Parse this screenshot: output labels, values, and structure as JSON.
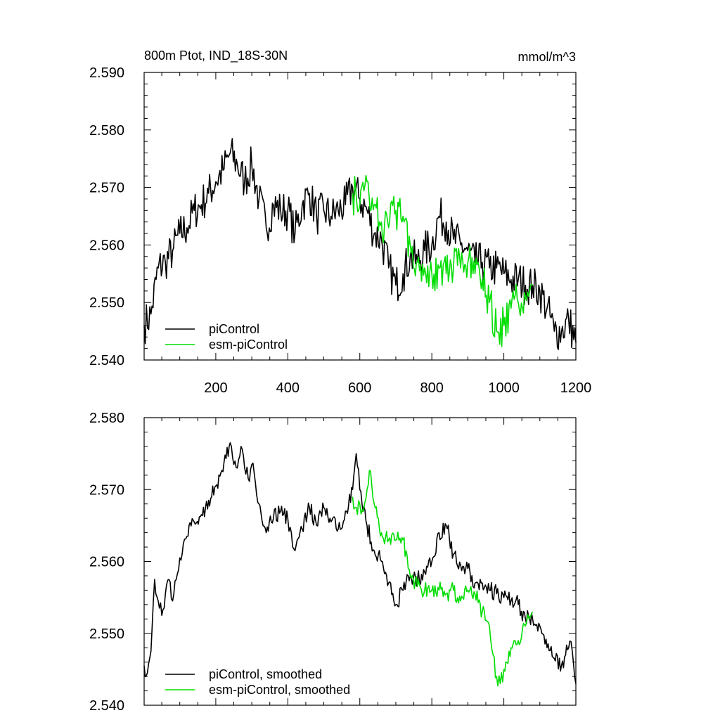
{
  "title": "800m Ptot, IND_18S-30N",
  "units": "mmol/m^3",
  "chart_data": [
    {
      "type": "line",
      "title": "800m Ptot, IND_18S-30N",
      "units": "mmol/m^3",
      "xlim": [
        1,
        1200
      ],
      "ylim": [
        2.54,
        2.59
      ],
      "xticks": [
        200,
        400,
        600,
        800,
        1000,
        1200
      ],
      "xtick_labels": [
        "200",
        "400",
        "600",
        "800",
        "1000",
        "1200"
      ],
      "yticks": [
        2.54,
        2.55,
        2.56,
        2.57,
        2.58,
        2.59
      ],
      "ytick_labels": [
        "2.540",
        "2.550",
        "2.560",
        "2.570",
        "2.580",
        "2.590"
      ],
      "legend_position": "bottom-left",
      "grid": false,
      "series": [
        {
          "name": "piControl",
          "color": "#000000",
          "x": [
            1,
            20,
            40,
            60,
            80,
            100,
            120,
            140,
            160,
            180,
            200,
            220,
            240,
            260,
            280,
            300,
            320,
            340,
            360,
            380,
            400,
            420,
            440,
            460,
            480,
            500,
            520,
            540,
            560,
            580,
            600,
            620,
            640,
            660,
            680,
            700,
            720,
            740,
            760,
            780,
            800,
            820,
            840,
            860,
            880,
            900,
            920,
            940,
            960,
            980,
            1000,
            1020,
            1040,
            1060,
            1080,
            1100,
            1120,
            1140,
            1160,
            1180,
            1200
          ],
          "y": [
            2.546,
            2.548,
            2.556,
            2.557,
            2.559,
            2.562,
            2.563,
            2.566,
            2.567,
            2.569,
            2.571,
            2.573,
            2.576,
            2.574,
            2.571,
            2.574,
            2.568,
            2.563,
            2.567,
            2.566,
            2.566,
            2.562,
            2.567,
            2.569,
            2.565,
            2.566,
            2.565,
            2.566,
            2.567,
            2.57,
            2.568,
            2.566,
            2.562,
            2.561,
            2.556,
            2.553,
            2.555,
            2.558,
            2.557,
            2.559,
            2.56,
            2.565,
            2.564,
            2.561,
            2.56,
            2.559,
            2.557,
            2.557,
            2.556,
            2.556,
            2.555,
            2.554,
            2.554,
            2.553,
            2.553,
            2.552,
            2.549,
            2.545,
            2.545,
            2.547,
            2.543
          ]
        },
        {
          "name": "esm-piControl",
          "color": "#00dd00",
          "x": [
            580,
            600,
            620,
            640,
            660,
            680,
            700,
            720,
            740,
            760,
            780,
            800,
            820,
            840,
            860,
            880,
            900,
            920,
            940,
            960,
            980,
            1000,
            1020,
            1040,
            1060,
            1080
          ],
          "y": [
            2.569,
            2.567,
            2.571,
            2.567,
            2.564,
            2.563,
            2.566,
            2.565,
            2.56,
            2.557,
            2.556,
            2.555,
            2.556,
            2.555,
            2.556,
            2.556,
            2.557,
            2.555,
            2.554,
            2.55,
            2.545,
            2.546,
            2.549,
            2.55,
            2.551,
            2.553
          ]
        }
      ]
    },
    {
      "type": "line",
      "xlim": [
        1,
        1200
      ],
      "ylim": [
        2.54,
        2.58
      ],
      "xticks": [
        200,
        400,
        600,
        800,
        1000,
        1200
      ],
      "yticks": [
        2.54,
        2.55,
        2.56,
        2.57,
        2.58
      ],
      "ytick_labels": [
        "2.540",
        "2.550",
        "2.560",
        "2.570",
        "2.580"
      ],
      "legend_position": "bottom-left",
      "grid": false,
      "series": [
        {
          "name": "piControl, smoothed",
          "color": "#000000",
          "x": [
            1,
            10,
            20,
            30,
            40,
            50,
            60,
            70,
            80,
            90,
            100,
            110,
            120,
            140,
            160,
            180,
            200,
            220,
            240,
            250,
            260,
            270,
            280,
            290,
            300,
            310,
            320,
            340,
            360,
            380,
            400,
            410,
            420,
            440,
            460,
            480,
            500,
            520,
            540,
            560,
            580,
            590,
            600,
            620,
            640,
            660,
            680,
            700,
            720,
            740,
            760,
            780,
            800,
            820,
            840,
            860,
            880,
            900,
            920,
            940,
            960,
            980,
            1000,
            1020,
            1040,
            1060,
            1080,
            1100,
            1120,
            1140,
            1160,
            1180,
            1190,
            1200
          ],
          "y": [
            2.5455,
            2.5445,
            2.5475,
            2.5575,
            2.5545,
            2.5525,
            2.5555,
            2.5575,
            2.5545,
            2.5575,
            2.5605,
            2.5625,
            2.5635,
            2.5655,
            2.5665,
            2.5685,
            2.5705,
            2.5725,
            2.5765,
            2.5735,
            2.573,
            2.576,
            2.573,
            2.5715,
            2.5735,
            2.571,
            2.568,
            2.564,
            2.566,
            2.567,
            2.566,
            2.564,
            2.5615,
            2.5645,
            2.5675,
            2.565,
            2.5675,
            2.5655,
            2.5645,
            2.567,
            2.57,
            2.575,
            2.57,
            2.565,
            2.5615,
            2.56,
            2.557,
            2.554,
            2.556,
            2.558,
            2.5575,
            2.5585,
            2.56,
            2.564,
            2.565,
            2.561,
            2.5595,
            2.559,
            2.557,
            2.557,
            2.556,
            2.5555,
            2.555,
            2.5545,
            2.554,
            2.552,
            2.552,
            2.551,
            2.548,
            2.5465,
            2.5455,
            2.548,
            2.5475,
            2.543
          ]
        },
        {
          "name": "esm-piControl, smoothed",
          "color": "#00dd00",
          "x": [
            580,
            590,
            600,
            610,
            620,
            630,
            640,
            660,
            680,
            700,
            720,
            740,
            760,
            780,
            800,
            820,
            840,
            860,
            880,
            900,
            920,
            940,
            960,
            970,
            980,
            990,
            1000,
            1020,
            1040,
            1060,
            1070,
            1080
          ],
          "y": [
            2.569,
            2.5675,
            2.568,
            2.567,
            2.57,
            2.5725,
            2.568,
            2.564,
            2.563,
            2.563,
            2.563,
            2.558,
            2.5565,
            2.556,
            2.556,
            2.556,
            2.5555,
            2.556,
            2.5545,
            2.556,
            2.5555,
            2.553,
            2.551,
            2.547,
            2.544,
            2.543,
            2.545,
            2.548,
            2.549,
            2.551,
            2.552,
            2.553
          ]
        }
      ]
    }
  ]
}
